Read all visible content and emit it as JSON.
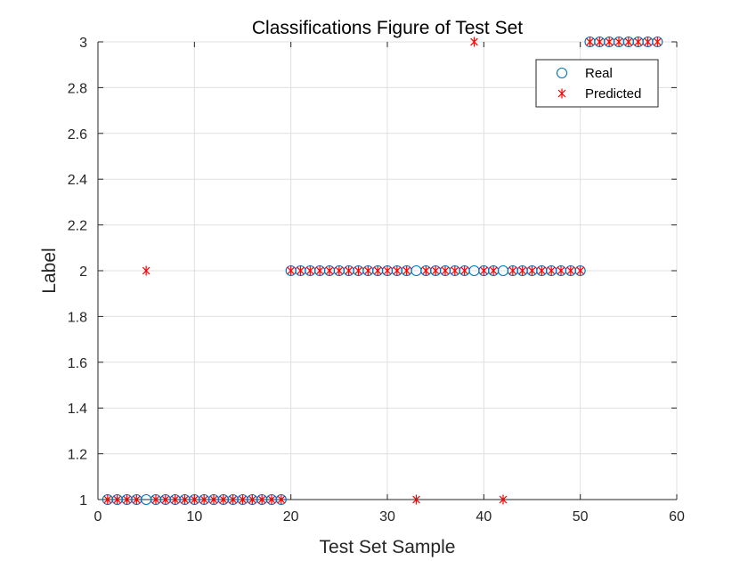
{
  "chart_data": {
    "type": "scatter",
    "title": "Classifications Figure of Test Set",
    "xlabel": "Test Set Sample",
    "ylabel": "Label",
    "xlim": [
      0,
      60
    ],
    "ylim": [
      1,
      3
    ],
    "xticks": [
      0,
      10,
      20,
      30,
      40,
      50,
      60
    ],
    "yticks": [
      1,
      1.2,
      1.4,
      1.6,
      1.8,
      2,
      2.2,
      2.4,
      2.6,
      2.8,
      3
    ],
    "grid": true,
    "legend_position": "top-right",
    "series": [
      {
        "name": "Real",
        "marker": "circle",
        "color": "#0072BD",
        "x": [
          1,
          2,
          3,
          4,
          5,
          6,
          7,
          8,
          9,
          10,
          11,
          12,
          13,
          14,
          15,
          16,
          17,
          18,
          19,
          20,
          21,
          22,
          23,
          24,
          25,
          26,
          27,
          28,
          29,
          30,
          31,
          32,
          33,
          34,
          35,
          36,
          37,
          38,
          39,
          40,
          41,
          42,
          43,
          44,
          45,
          46,
          47,
          48,
          49,
          50,
          51,
          52,
          53,
          54,
          55,
          56,
          57,
          58
        ],
        "y": [
          1,
          1,
          1,
          1,
          1,
          1,
          1,
          1,
          1,
          1,
          1,
          1,
          1,
          1,
          1,
          1,
          1,
          1,
          1,
          2,
          2,
          2,
          2,
          2,
          2,
          2,
          2,
          2,
          2,
          2,
          2,
          2,
          2,
          2,
          2,
          2,
          2,
          2,
          2,
          2,
          2,
          2,
          2,
          2,
          2,
          2,
          2,
          2,
          2,
          2,
          3,
          3,
          3,
          3,
          3,
          3,
          3,
          3
        ]
      },
      {
        "name": "Predicted",
        "marker": "asterisk",
        "color": "#FF0000",
        "x": [
          1,
          2,
          3,
          4,
          5,
          6,
          7,
          8,
          9,
          10,
          11,
          12,
          13,
          14,
          15,
          16,
          17,
          18,
          19,
          20,
          21,
          22,
          23,
          24,
          25,
          26,
          27,
          28,
          29,
          30,
          31,
          32,
          33,
          34,
          35,
          36,
          37,
          38,
          39,
          40,
          41,
          42,
          43,
          44,
          45,
          46,
          47,
          48,
          49,
          50,
          51,
          52,
          53,
          54,
          55,
          56,
          57,
          58
        ],
        "y": [
          1,
          1,
          1,
          1,
          2,
          1,
          1,
          1,
          1,
          1,
          1,
          1,
          1,
          1,
          1,
          1,
          1,
          1,
          1,
          2,
          2,
          2,
          2,
          2,
          2,
          2,
          2,
          2,
          2,
          2,
          2,
          2,
          1,
          2,
          2,
          2,
          2,
          2,
          3,
          2,
          2,
          1,
          2,
          2,
          2,
          2,
          2,
          2,
          2,
          2,
          3,
          3,
          3,
          3,
          3,
          3,
          3,
          3
        ]
      }
    ]
  }
}
